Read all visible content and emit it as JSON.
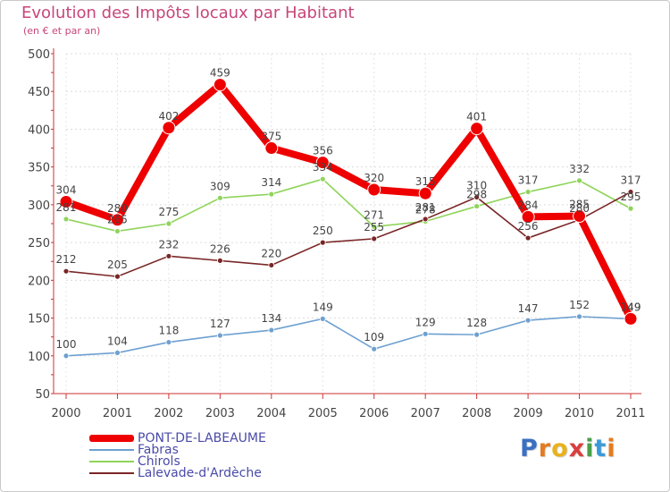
{
  "title": "Evolution des Impôts locaux par Habitant",
  "subtitle": "(en € et par an)",
  "logo": {
    "text": "Proxiti",
    "letters": [
      "P",
      "r",
      "o",
      "x",
      "i",
      "t",
      "i"
    ],
    "colors": [
      "#3a6fc1",
      "#e47b1f",
      "#e8b21c",
      "#d93f3f",
      "#4aa04a",
      "#3a9ad9",
      "#e47b1f"
    ]
  },
  "chart_data": {
    "type": "line",
    "title": "Evolution des Impôts locaux par Habitant",
    "subtitle": "(en € et par an)",
    "xlabel": "",
    "ylabel": "",
    "x": [
      2000,
      2001,
      2002,
      2003,
      2004,
      2005,
      2006,
      2007,
      2008,
      2009,
      2010,
      2011
    ],
    "ylim": [
      50,
      500
    ],
    "yticks": [
      50,
      100,
      150,
      200,
      250,
      300,
      350,
      400,
      450,
      500
    ],
    "grid": true,
    "legend_position": "bottom-left",
    "series": [
      {
        "name": "PONT-DE-LABEAUME",
        "color": "#ee0000",
        "thick": true,
        "values": [
          304,
          280,
          402,
          459,
          375,
          356,
          320,
          315,
          401,
          284,
          285,
          149
        ]
      },
      {
        "name": "Fabras",
        "color": "#6ea0d0",
        "thick": false,
        "values": [
          100,
          104,
          118,
          127,
          134,
          149,
          109,
          129,
          128,
          147,
          152,
          149
        ]
      },
      {
        "name": "Chirols",
        "color": "#8fd45a",
        "thick": false,
        "values": [
          281,
          265,
          275,
          309,
          314,
          334,
          271,
          278,
          298,
          317,
          332,
          295
        ]
      },
      {
        "name": "Lalevade-d'Ardèche",
        "color": "#7a2626",
        "thick": false,
        "values": [
          212,
          205,
          232,
          226,
          220,
          250,
          255,
          281,
          310,
          256,
          280,
          317
        ]
      }
    ]
  }
}
